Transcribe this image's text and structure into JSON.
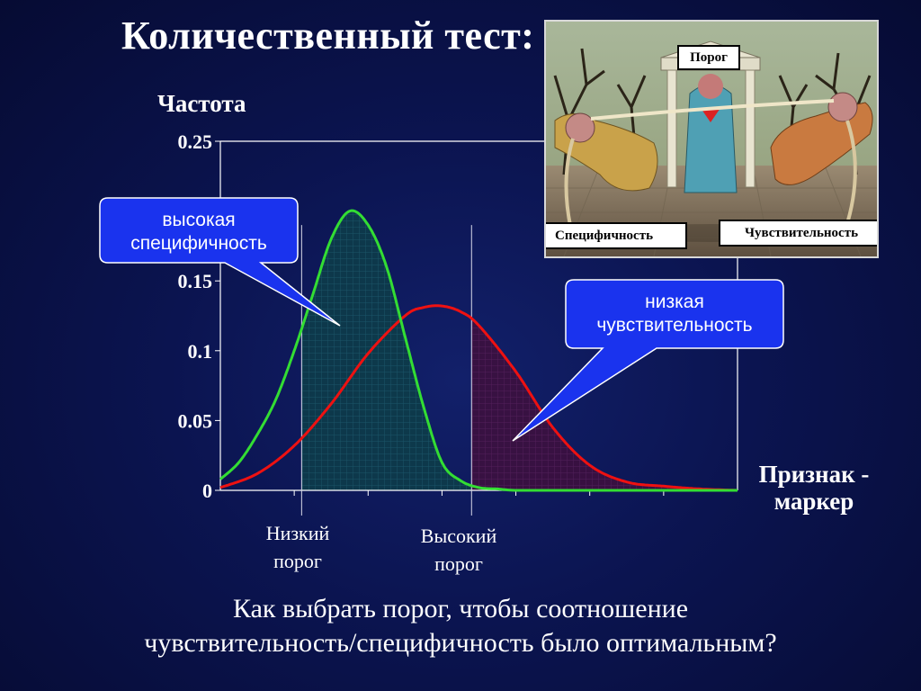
{
  "title": "Количественный тест:",
  "question": {
    "line1": "Как выбрать порог, чтобы соотношение",
    "line2": "чувствительность/специфичность было оптимальным?"
  },
  "picture": {
    "label_threshold": "Порог",
    "label_specificity": "Специфичность",
    "label_sensitivity": "Чувствительность"
  },
  "callouts": {
    "high_specificity": {
      "line1": "высокая",
      "line2": "специфичность"
    },
    "low_sensitivity": {
      "line1": "низкая",
      "line2": "чувствительность"
    }
  },
  "thresholds": {
    "low": {
      "line1": "Низкий",
      "line2": "порог"
    },
    "high": {
      "line1": "Высокий",
      "line2": "порог"
    }
  },
  "colors": {
    "healthy_curve": "#33dd33",
    "disease_curve": "#ee1111",
    "healthy_fill": "#0d3a4a",
    "disease_fill": "#3a1040",
    "callout_fill": "#1a33ee"
  },
  "chart_data": {
    "type": "line",
    "ylabel": "Частота",
    "xlabel_line1": "Признак -",
    "xlabel_line2": "маркер",
    "ylim": [
      0,
      0.25
    ],
    "xlim": [
      0,
      14
    ],
    "y_ticks": [
      "0",
      "0.05",
      "0.1",
      "0.15",
      "0.25"
    ],
    "y_tick_values": [
      0,
      0.05,
      0.1,
      0.15,
      0.25
    ],
    "grid": false,
    "series": [
      {
        "x": [
          0,
          0.5,
          1,
          1.5,
          2,
          2.5,
          3,
          3.5,
          4,
          4.5,
          5,
          5.5,
          6,
          6.5,
          7,
          7.5,
          8,
          9,
          10,
          11,
          12,
          13,
          14
        ],
        "values": [
          0.008,
          0.02,
          0.04,
          0.065,
          0.1,
          0.14,
          0.18,
          0.2,
          0.19,
          0.16,
          0.11,
          0.06,
          0.02,
          0.007,
          0.002,
          0.001,
          0.0,
          0.0,
          0.0,
          0.0,
          0.0,
          0.0,
          0.0
        ]
      },
      {
        "x": [
          0,
          1,
          2,
          3,
          4,
          5,
          5.5,
          6,
          6.5,
          7,
          8,
          9,
          10,
          11,
          12,
          13,
          14
        ],
        "values": [
          0.002,
          0.012,
          0.032,
          0.062,
          0.098,
          0.125,
          0.131,
          0.132,
          0.128,
          0.118,
          0.085,
          0.045,
          0.018,
          0.006,
          0.003,
          0.001,
          0.0
        ]
      }
    ],
    "thresholds_x": [
      2.2,
      6.8
    ]
  }
}
